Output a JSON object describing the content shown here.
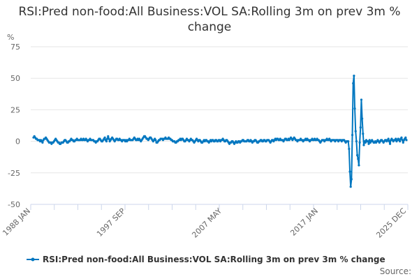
{
  "chart_data": {
    "type": "line",
    "title": "RSI:Pred non-food:All Business:VOL SA:Rolling 3m on prev 3m % change",
    "ylabel": "%",
    "xlabel": "",
    "ylim": [
      -50,
      75
    ],
    "yticks": [
      "75",
      "50",
      "25",
      "0",
      "-25",
      "-50"
    ],
    "x_start": "1988 JAN",
    "x_end": "2025 DEC",
    "x_frequency": "monthly",
    "xtick_labels": [
      "1988 JAN",
      "1997 SEP",
      "2007 MAY",
      "2017 JAN",
      "2025 DEC"
    ],
    "grid": true,
    "legend_position": "bottom",
    "series": [
      {
        "name": "RSI:Pred non-food:All Business:VOL SA:Rolling 3m on prev 3m % change",
        "color": "#0077c0",
        "values": [
          3,
          4,
          3,
          2,
          2,
          1,
          1,
          1,
          0,
          1,
          0,
          -1,
          1,
          2,
          2,
          3,
          2,
          1,
          0,
          -1,
          -1,
          -1,
          -2,
          -1,
          -1,
          0,
          1,
          2,
          1,
          0,
          -1,
          -1,
          -2,
          -2,
          -1,
          -1,
          -1,
          0,
          1,
          1,
          0,
          -1,
          -1,
          0,
          0,
          1,
          2,
          1,
          1,
          0,
          0,
          1,
          1,
          2,
          1,
          1,
          1,
          1,
          2,
          1,
          1,
          2,
          1,
          1,
          2,
          1,
          0,
          1,
          1,
          2,
          1,
          1,
          1,
          1,
          0,
          0,
          -1,
          0,
          0,
          1,
          2,
          2,
          1,
          0,
          0,
          1,
          2,
          3,
          1,
          0,
          2,
          4,
          2,
          0,
          1,
          2,
          3,
          2,
          1,
          0,
          1,
          2,
          2,
          1,
          1,
          2,
          1,
          1,
          0,
          1,
          1,
          1,
          0,
          1,
          0,
          1,
          1,
          2,
          1,
          1,
          1,
          1,
          2,
          3,
          2,
          1,
          1,
          2,
          1,
          2,
          1,
          0,
          1,
          2,
          3,
          4,
          4,
          3,
          2,
          2,
          1,
          2,
          3,
          3,
          2,
          1,
          0,
          1,
          2,
          1,
          -1,
          -1,
          0,
          1,
          1,
          2,
          2,
          2,
          1,
          2,
          2,
          3,
          2,
          2,
          2,
          3,
          2,
          2,
          1,
          1,
          0,
          0,
          0,
          -1,
          -1,
          0,
          0,
          1,
          1,
          2,
          1,
          2,
          2,
          1,
          0,
          0,
          1,
          2,
          1,
          1,
          0,
          1,
          2,
          1,
          1,
          0,
          -1,
          0,
          1,
          2,
          1,
          0,
          1,
          1,
          0,
          -1,
          -1,
          0,
          1,
          0,
          1,
          1,
          0,
          0,
          -1,
          0,
          1,
          0,
          1,
          1,
          0,
          0,
          1,
          1,
          0,
          0,
          1,
          1,
          0,
          1,
          1,
          2,
          1,
          0,
          0,
          1,
          1,
          0,
          -1,
          -2,
          -1,
          -1,
          0,
          0,
          -1,
          -2,
          -1,
          0,
          -1,
          -1,
          0,
          0,
          -1,
          0,
          0,
          1,
          1,
          0,
          0,
          0,
          0,
          1,
          1,
          0,
          0,
          1,
          0,
          -1,
          0,
          0,
          1,
          1,
          0,
          -1,
          -1,
          0,
          0,
          1,
          1,
          0,
          0,
          1,
          1,
          0,
          0,
          1,
          1,
          1,
          0,
          -1,
          0,
          1,
          1,
          0,
          1,
          2,
          1,
          2,
          2,
          1,
          1,
          2,
          1,
          1,
          1,
          0,
          1,
          2,
          2,
          1,
          1,
          2,
          1,
          2,
          3,
          2,
          1,
          2,
          3,
          2,
          1,
          1,
          0,
          1,
          1,
          1,
          2,
          1,
          1,
          0,
          1,
          1,
          2,
          1,
          2,
          1,
          1,
          0,
          1,
          1,
          2,
          1,
          1,
          2,
          1,
          1,
          2,
          1,
          1,
          0,
          -1,
          0,
          1,
          1,
          1,
          0,
          1,
          1,
          2,
          1,
          1,
          2,
          1,
          0,
          1,
          1,
          1,
          1,
          0,
          1,
          1,
          1,
          0,
          1,
          1,
          1,
          0,
          1,
          1,
          1,
          0,
          -1,
          0,
          0,
          0,
          -6,
          -24,
          -36,
          -30,
          5,
          46,
          52,
          26,
          8,
          0,
          -11,
          -14,
          -19,
          -1,
          11,
          33,
          18,
          6,
          -3,
          0,
          -1,
          1,
          0,
          0,
          -2,
          1,
          -1,
          0,
          1,
          0,
          -1,
          -1,
          0,
          -1,
          0,
          1,
          0,
          -1,
          0,
          1,
          1,
          0,
          -1,
          0,
          1,
          1,
          0,
          1,
          2,
          0,
          -2,
          1,
          2,
          1,
          0,
          1,
          1,
          2,
          0,
          1,
          2,
          1,
          0,
          2,
          3,
          1,
          -1,
          1,
          2,
          3,
          1
        ]
      }
    ]
  },
  "source_label": "Source:"
}
